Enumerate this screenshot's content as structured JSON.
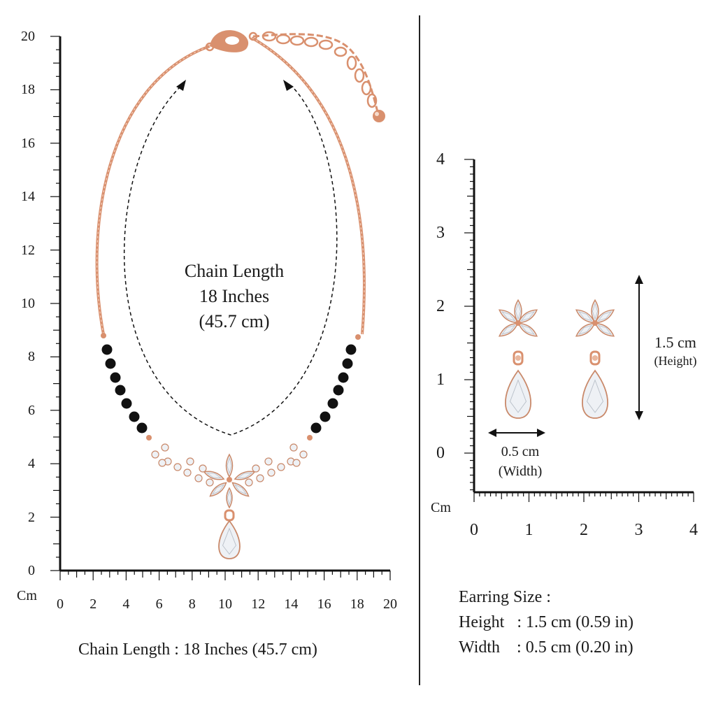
{
  "necklace_ruler": {
    "unit_label": "Cm",
    "y_ticks": [
      "0",
      "2",
      "4",
      "6",
      "8",
      "10",
      "12",
      "14",
      "16",
      "18",
      "20"
    ],
    "x_ticks": [
      "0",
      "2",
      "4",
      "6",
      "8",
      "10",
      "12",
      "14",
      "16",
      "18",
      "20"
    ]
  },
  "earring_ruler": {
    "unit_label": "Cm",
    "y_ticks": [
      "0",
      "1",
      "2",
      "3",
      "4"
    ],
    "x_ticks": [
      "0",
      "1",
      "2",
      "3",
      "4"
    ]
  },
  "necklace_annotation": {
    "line1": "Chain Length",
    "line2": "18 Inches",
    "line3": "(45.7 cm)"
  },
  "necklace_caption": "Chain Length : 18 Inches (45.7 cm)",
  "earring_width": {
    "value": "0.5 cm",
    "sub": "(Width)"
  },
  "earring_height": {
    "value": "1.5 cm",
    "sub": "(Height)"
  },
  "earring_size": {
    "title": "Earring Size :",
    "height_line": "Height   : 1.5 cm (0.59 in)",
    "width_line": "Width    : 0.5 cm (0.20 in)"
  },
  "colors": {
    "rose_gold": "#d9906e",
    "bead": "#111111",
    "crystal": "#eef1f5",
    "ink": "#1a1a1a"
  }
}
